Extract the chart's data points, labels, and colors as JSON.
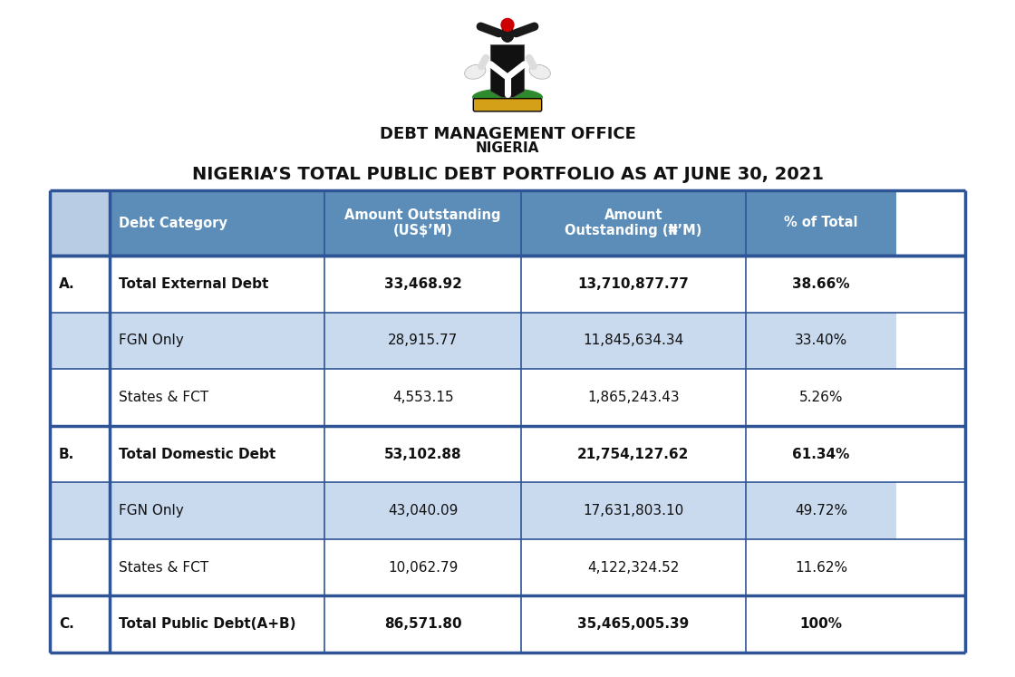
{
  "title": "NIGERIA’S TOTAL PUBLIC DEBT PORTFOLIO AS AT JUNE 30, 2021",
  "org_name": "DEBT MANAGEMENT OFFICE",
  "org_sub": "NIGERIA",
  "col_header_bg": "#5b8db8",
  "col_header_fg": "#ffffff",
  "rows": [
    {
      "label": "A.",
      "category": "Total External Debt",
      "usd": "33,468.92",
      "naira": "13,710,877.77",
      "pct": "38.66%",
      "bold": true,
      "row_bg": "#ffffff",
      "label_bg": "#ffffff",
      "thick_top": true
    },
    {
      "label": "",
      "category": "FGN Only",
      "usd": "28,915.77",
      "naira": "11,845,634.34",
      "pct": "33.40%",
      "bold": false,
      "row_bg": "#c9d9ee",
      "label_bg": "#c9d9ee",
      "thick_top": false
    },
    {
      "label": "",
      "category": "States & FCT",
      "usd": "4,553.15",
      "naira": "1,865,243.43",
      "pct": "5.26%",
      "bold": false,
      "row_bg": "#ffffff",
      "label_bg": "#ffffff",
      "thick_top": false
    },
    {
      "label": "B.",
      "category": "Total Domestic Debt",
      "usd": "53,102.88",
      "naira": "21,754,127.62",
      "pct": "61.34%",
      "bold": true,
      "row_bg": "#ffffff",
      "label_bg": "#ffffff",
      "thick_top": true
    },
    {
      "label": "",
      "category": "FGN Only",
      "usd": "43,040.09",
      "naira": "17,631,803.10",
      "pct": "49.72%",
      "bold": false,
      "row_bg": "#c9d9ee",
      "label_bg": "#c9d9ee",
      "thick_top": false
    },
    {
      "label": "",
      "category": "States & FCT",
      "usd": "10,062.79",
      "naira": "4,122,324.52",
      "pct": "11.62%",
      "bold": false,
      "row_bg": "#ffffff",
      "label_bg": "#ffffff",
      "thick_top": false
    },
    {
      "label": "C.",
      "category": "Total Public Debt(A+B)",
      "usd": "86,571.80",
      "naira": "35,465,005.39",
      "pct": "100%",
      "bold": true,
      "row_bg": "#ffffff",
      "label_bg": "#ffffff",
      "thick_top": true
    }
  ],
  "bg_color": "#ffffff",
  "border_color": "#2e5496",
  "thin_lw": 1.2,
  "thick_lw": 2.5,
  "header_fontsize": 10.5,
  "cell_fontsize": 11,
  "title_fontsize": 14,
  "org_fontsize": 13,
  "org_sub_fontsize": 11
}
